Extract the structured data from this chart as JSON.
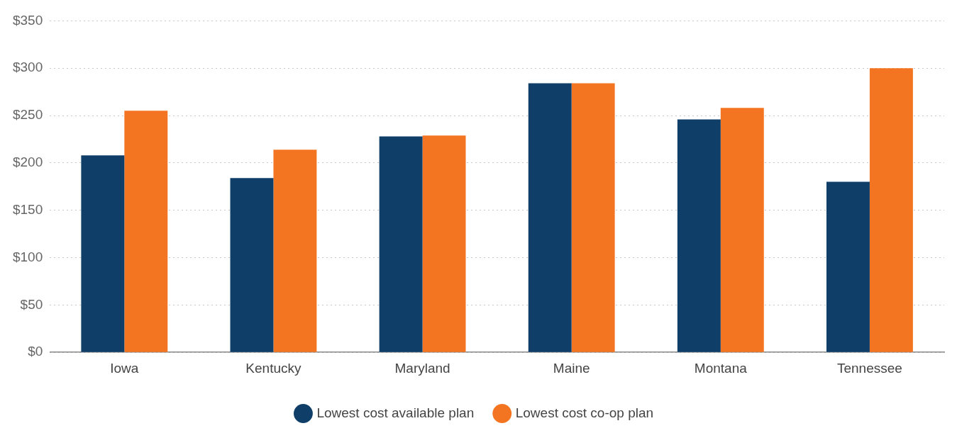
{
  "chart_data": {
    "type": "bar",
    "categories": [
      "Iowa",
      "Kentucky",
      "Maryland",
      "Maine",
      "Montana",
      "Tennessee"
    ],
    "series": [
      {
        "name": "Lowest cost available plan",
        "color": "#0f3f68",
        "values": [
          208,
          184,
          228,
          284,
          246,
          180
        ]
      },
      {
        "name": "Lowest cost co-op plan",
        "color": "#f47521",
        "values": [
          255,
          214,
          229,
          284,
          258,
          300
        ]
      }
    ],
    "ylim": [
      0,
      350
    ],
    "yticks": [
      {
        "value": 0,
        "label": "$0"
      },
      {
        "value": 50,
        "label": "$50"
      },
      {
        "value": 100,
        "label": "$100"
      },
      {
        "value": 150,
        "label": "$150"
      },
      {
        "value": 200,
        "label": "$200"
      },
      {
        "value": 250,
        "label": "$250"
      },
      {
        "value": 300,
        "label": "$300"
      },
      {
        "value": 350,
        "label": "$350"
      }
    ],
    "grid": "y",
    "legend": "bottom"
  }
}
